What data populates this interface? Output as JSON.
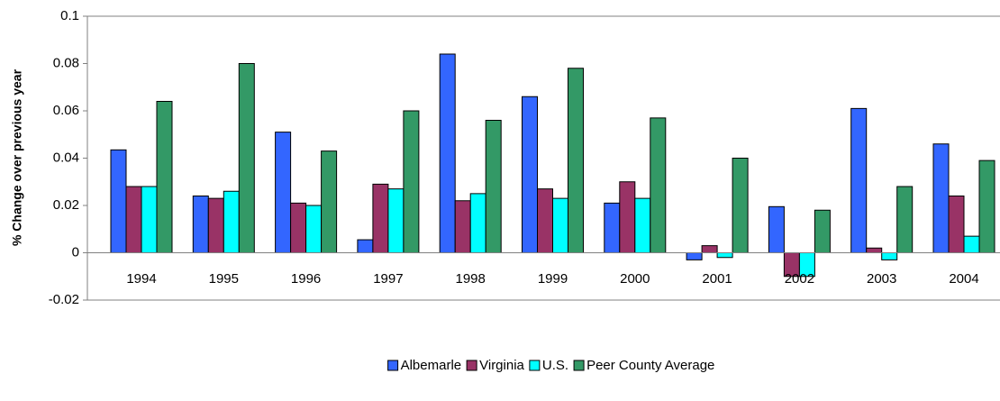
{
  "chart_data": {
    "type": "bar",
    "y_label": "% Change over previous year",
    "categories": [
      "1994",
      "1995",
      "1996",
      "1997",
      "1998",
      "1999",
      "2000",
      "2001",
      "2002",
      "2003",
      "2004"
    ],
    "series": [
      {
        "name": "Albemarle",
        "color": "#3366ff",
        "values": [
          0.0435,
          0.024,
          0.051,
          0.0055,
          0.084,
          0.066,
          0.021,
          -0.003,
          0.0195,
          0.061,
          0.046
        ]
      },
      {
        "name": "Virginia",
        "color": "#993366",
        "values": [
          0.028,
          0.023,
          0.021,
          0.029,
          0.022,
          0.027,
          0.03,
          0.003,
          -0.01,
          0.002,
          0.024
        ]
      },
      {
        "name": "U.S.",
        "color": "#00ffff",
        "values": [
          0.028,
          0.026,
          0.02,
          0.027,
          0.025,
          0.023,
          0.023,
          -0.002,
          -0.01,
          -0.003,
          0.007
        ]
      },
      {
        "name": "Peer County Average",
        "color": "#339966",
        "values": [
          0.064,
          0.08,
          0.043,
          0.06,
          0.056,
          0.078,
          0.057,
          0.04,
          0.018,
          0.028,
          0.039
        ]
      }
    ],
    "ylim": [
      -0.02,
      0.1
    ],
    "yticks": [
      -0.02,
      0,
      0.02,
      0.04,
      0.06,
      0.08,
      0.1
    ],
    "legend": "bottom"
  }
}
